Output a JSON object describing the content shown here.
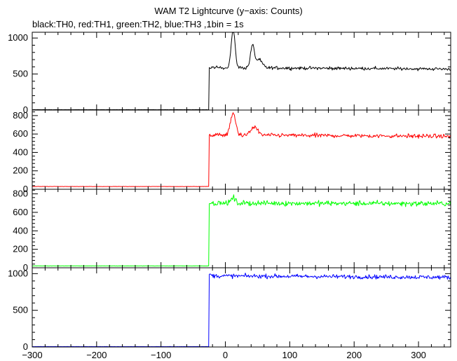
{
  "chart_data": {
    "type": "line",
    "title": "WAM T2 Lightcurve (y−axis: Counts)",
    "subtitle": "black:TH0, red:TH1, green:TH2, blue:TH3 ,1bin = 1s",
    "xlim": [
      -300,
      350
    ],
    "xticks": [
      -300,
      -200,
      -100,
      0,
      100,
      200,
      300
    ],
    "xtick_labels": [
      "−300",
      "−200",
      "−100",
      "0",
      "100",
      "200",
      "300"
    ],
    "panels": [
      {
        "name": "TH0",
        "color": "#000000",
        "ylim": [
          0,
          1080
        ],
        "yticks": [
          0,
          500,
          1000
        ],
        "ytick_labels": [
          "0",
          "500",
          "1000"
        ],
        "pre_level": 5,
        "onset_x": -25,
        "start_level": 580,
        "post_level": 590,
        "end_level": 570,
        "noise": 22,
        "peaks": [
          {
            "x": 12,
            "height": 520,
            "width": 3
          },
          {
            "x": 42,
            "height": 300,
            "width": 3
          },
          {
            "x": 52,
            "height": 110,
            "width": 5
          }
        ]
      },
      {
        "name": "TH1",
        "color": "#ff0000",
        "ylim": [
          0,
          860
        ],
        "yticks": [
          0,
          200,
          400,
          600,
          800
        ],
        "ytick_labels": [
          "0",
          "200",
          "400",
          "600",
          "800"
        ],
        "pre_level": 30,
        "onset_x": -25,
        "start_level": 580,
        "post_level": 590,
        "end_level": 575,
        "noise": 22,
        "peaks": [
          {
            "x": 12,
            "height": 230,
            "width": 4
          },
          {
            "x": 45,
            "height": 90,
            "width": 5
          }
        ]
      },
      {
        "name": "TH2",
        "color": "#00ff00",
        "ylim": [
          0,
          850
        ],
        "yticks": [
          0,
          200,
          400,
          600,
          800
        ],
        "ytick_labels": [
          "0",
          "200",
          "400",
          "600",
          "800"
        ],
        "pre_level": 20,
        "onset_x": -25,
        "start_level": 700,
        "post_level": 700,
        "end_level": 695,
        "noise": 28,
        "peaks": [
          {
            "x": 12,
            "height": 60,
            "width": 3
          }
        ]
      },
      {
        "name": "TH3",
        "color": "#0000ff",
        "ylim": [
          0,
          1080
        ],
        "yticks": [
          0,
          500,
          1000
        ],
        "ytick_labels": [
          "0",
          "500",
          "1000"
        ],
        "pre_level": 5,
        "onset_x": -25,
        "start_level": 990,
        "post_level": 970,
        "end_level": 950,
        "noise": 28,
        "peaks": []
      }
    ]
  }
}
